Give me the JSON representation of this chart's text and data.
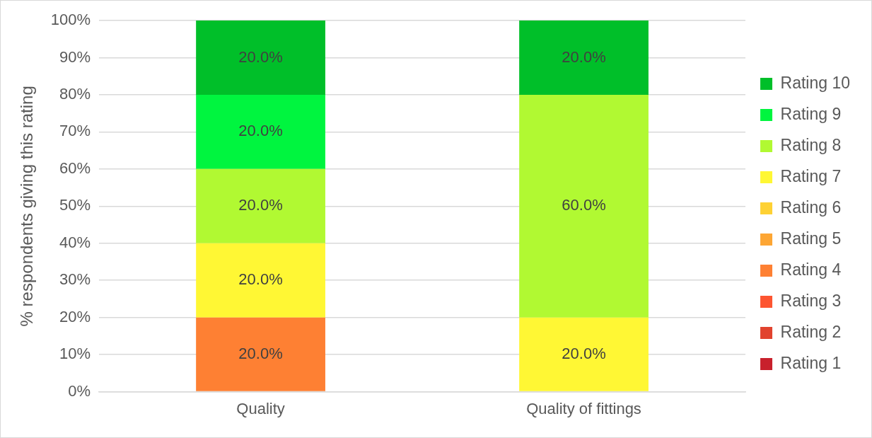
{
  "chart_data": {
    "type": "bar",
    "stacked": true,
    "ylabel": "% respondents giving this rating",
    "categories": [
      "Quality",
      "Quality of fittings"
    ],
    "series": [
      {
        "name": "Rating 1",
        "color": "#c8202c",
        "values": [
          0,
          0
        ],
        "value_labels": [
          null,
          null
        ]
      },
      {
        "name": "Rating 2",
        "color": "#e1432e",
        "values": [
          0,
          0
        ],
        "value_labels": [
          null,
          null
        ]
      },
      {
        "name": "Rating 3",
        "color": "#fd5531",
        "values": [
          0,
          0
        ],
        "value_labels": [
          null,
          null
        ]
      },
      {
        "name": "Rating 4",
        "color": "#fe8033",
        "values": [
          20,
          0
        ],
        "value_labels": [
          "20.0%",
          null
        ]
      },
      {
        "name": "Rating 5",
        "color": "#fda634",
        "values": [
          0,
          0
        ],
        "value_labels": [
          null,
          null
        ]
      },
      {
        "name": "Rating 6",
        "color": "#fed134",
        "values": [
          0,
          0
        ],
        "value_labels": [
          null,
          null
        ]
      },
      {
        "name": "Rating 7",
        "color": "#fff734",
        "values": [
          20,
          20
        ],
        "value_labels": [
          "20.0%",
          "20.0%"
        ]
      },
      {
        "name": "Rating 8",
        "color": "#b1f932",
        "values": [
          20,
          60
        ],
        "value_labels": [
          "20.0%",
          "60.0%"
        ]
      },
      {
        "name": "Rating 9",
        "color": "#00f53f",
        "values": [
          20,
          0
        ],
        "value_labels": [
          "20.0%",
          null
        ]
      },
      {
        "name": "Rating 10",
        "color": "#00bf29",
        "values": [
          20,
          20
        ],
        "value_labels": [
          "20.0%",
          "20.0%"
        ]
      }
    ],
    "ylim": [
      0,
      100
    ],
    "yticks": [
      {
        "value": 0,
        "label": "0%"
      },
      {
        "value": 10,
        "label": "10%"
      },
      {
        "value": 20,
        "label": "20%"
      },
      {
        "value": 30,
        "label": "30%"
      },
      {
        "value": 40,
        "label": "40%"
      },
      {
        "value": 50,
        "label": "50%"
      },
      {
        "value": 60,
        "label": "60%"
      },
      {
        "value": 70,
        "label": "70%"
      },
      {
        "value": 80,
        "label": "80%"
      },
      {
        "value": 90,
        "label": "90%"
      },
      {
        "value": 100,
        "label": "100%"
      }
    ],
    "grid": "y",
    "legend": "right"
  }
}
